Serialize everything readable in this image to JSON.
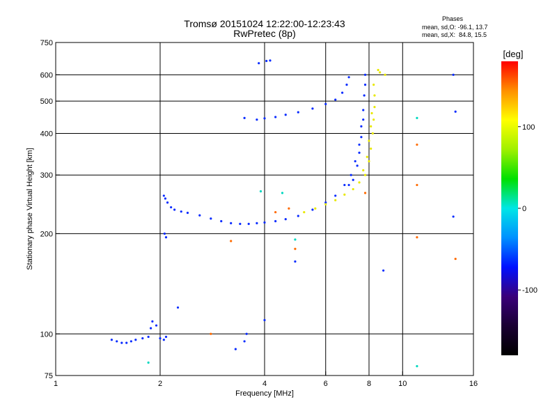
{
  "chart_data": {
    "type": "scatter",
    "title": "Tromsø 20151024 12:22:00-12:23:43",
    "subtitle": "RwPretec (8p)",
    "xlabel": "Frequency [MHz]",
    "ylabel": "Stationary phase Virtual Height [km]",
    "x_scale": "log",
    "y_scale": "log",
    "xlim": [
      1,
      16
    ],
    "ylim": [
      75,
      750
    ],
    "x_ticks": [
      1,
      2,
      4,
      6,
      8,
      10,
      16
    ],
    "x_tick_labels": [
      "1",
      "2",
      "4",
      "6",
      "8",
      "10",
      "16"
    ],
    "y_ticks": [
      75,
      100,
      200,
      300,
      400,
      500,
      600,
      750
    ],
    "y_tick_labels": [
      "75",
      "100",
      "200",
      "300",
      "400",
      "500",
      "600",
      "750"
    ],
    "x_gridlines": [
      2,
      4,
      6,
      8,
      10
    ],
    "y_gridlines": [
      100,
      200,
      300,
      400,
      500,
      600
    ],
    "grid": true,
    "colorbar": {
      "label": "[deg]",
      "range": [
        -180,
        180
      ],
      "ticks": [
        100,
        0,
        -100
      ],
      "tick_labels": [
        "100",
        "0",
        "-100"
      ],
      "colors": [
        "#000000",
        "#1a0033",
        "#3a007a",
        "#0010ff",
        "#0090ff",
        "#00e6e6",
        "#00e000",
        "#a0f000",
        "#ffff00",
        "#ff9000",
        "#ff0000"
      ]
    },
    "phase_stats": {
      "heading": "Phases",
      "line_o": "mean, sd,O: -96.1, 13.7",
      "line_x": "mean, sd,X:  84.8, 15.5"
    },
    "series": [
      {
        "mode": "O",
        "color": "#0a2cff",
        "points": [
          [
            1.45,
            96
          ],
          [
            1.5,
            95
          ],
          [
            1.55,
            94
          ],
          [
            1.6,
            94
          ],
          [
            1.65,
            95
          ],
          [
            1.7,
            96
          ],
          [
            1.78,
            97
          ],
          [
            1.85,
            98
          ],
          [
            1.88,
            104
          ],
          [
            1.9,
            109
          ],
          [
            1.95,
            106
          ],
          [
            2.0,
            97
          ],
          [
            2.05,
            96
          ],
          [
            2.08,
            98
          ],
          [
            2.05,
            260
          ],
          [
            2.07,
            255
          ],
          [
            2.1,
            248
          ],
          [
            2.15,
            240
          ],
          [
            2.2,
            236
          ],
          [
            2.3,
            233
          ],
          [
            2.4,
            231
          ],
          [
            2.6,
            227
          ],
          [
            2.8,
            222
          ],
          [
            3.0,
            218
          ],
          [
            3.2,
            215
          ],
          [
            3.4,
            214
          ],
          [
            3.6,
            214
          ],
          [
            3.8,
            215
          ],
          [
            4.0,
            216
          ],
          [
            4.3,
            218
          ],
          [
            4.6,
            221
          ],
          [
            5.0,
            226
          ],
          [
            5.5,
            236
          ],
          [
            6.0,
            248
          ],
          [
            6.4,
            260
          ],
          [
            6.8,
            280
          ],
          [
            7.1,
            300
          ],
          [
            7.3,
            330
          ],
          [
            7.5,
            370
          ],
          [
            7.6,
            420
          ],
          [
            7.7,
            470
          ],
          [
            7.75,
            520
          ],
          [
            7.8,
            560
          ],
          [
            7.8,
            600
          ],
          [
            3.5,
            445
          ],
          [
            3.8,
            440
          ],
          [
            4.0,
            444
          ],
          [
            4.3,
            448
          ],
          [
            4.6,
            455
          ],
          [
            5.0,
            463
          ],
          [
            5.5,
            475
          ],
          [
            6.0,
            490
          ],
          [
            6.4,
            505
          ],
          [
            6.7,
            530
          ],
          [
            6.9,
            560
          ],
          [
            7.0,
            590
          ],
          [
            3.85,
            650
          ],
          [
            4.05,
            660
          ],
          [
            4.15,
            662
          ],
          [
            2.06,
            200
          ],
          [
            2.08,
            195
          ],
          [
            7.0,
            280
          ],
          [
            7.2,
            290
          ],
          [
            7.4,
            320
          ],
          [
            7.5,
            350
          ],
          [
            7.6,
            390
          ],
          [
            7.7,
            440
          ],
          [
            14.0,
            600
          ],
          [
            14.2,
            465
          ],
          [
            14.0,
            225
          ],
          [
            8.8,
            155
          ],
          [
            4.9,
            165
          ],
          [
            2.25,
            120
          ],
          [
            3.3,
            90
          ],
          [
            3.5,
            95
          ],
          [
            3.55,
            100
          ],
          [
            4.0,
            110
          ]
        ]
      },
      {
        "mode": "X",
        "color": "#e8e800",
        "points": [
          [
            5.2,
            232
          ],
          [
            5.6,
            238
          ],
          [
            6.0,
            245
          ],
          [
            6.4,
            252
          ],
          [
            6.8,
            262
          ],
          [
            7.2,
            272
          ],
          [
            7.5,
            285
          ],
          [
            7.8,
            300
          ],
          [
            8.0,
            330
          ],
          [
            8.1,
            360
          ],
          [
            8.2,
            400
          ],
          [
            8.25,
            440
          ],
          [
            8.3,
            480
          ],
          [
            8.3,
            520
          ],
          [
            8.25,
            560
          ],
          [
            8.5,
            620
          ],
          [
            8.6,
            610
          ],
          [
            8.9,
            600
          ],
          [
            7.7,
            310
          ],
          [
            7.9,
            340
          ],
          [
            8.0,
            380
          ],
          [
            8.1,
            420
          ],
          [
            8.15,
            460
          ]
        ]
      },
      {
        "mode": "misc",
        "color": "#ff6a00",
        "points": [
          [
            11.0,
            370
          ],
          [
            11.0,
            280
          ],
          [
            11.0,
            195
          ],
          [
            14.2,
            168
          ],
          [
            4.7,
            238
          ],
          [
            3.2,
            190
          ],
          [
            4.9,
            180
          ],
          [
            2.8,
            100
          ],
          [
            7.8,
            265
          ],
          [
            4.3,
            232
          ]
        ]
      },
      {
        "mode": "misc",
        "color": "#00d8c0",
        "points": [
          [
            11.0,
            445
          ],
          [
            11.0,
            80
          ],
          [
            4.5,
            265
          ],
          [
            3.9,
            268
          ],
          [
            1.85,
            82
          ],
          [
            4.9,
            192
          ]
        ]
      }
    ]
  }
}
